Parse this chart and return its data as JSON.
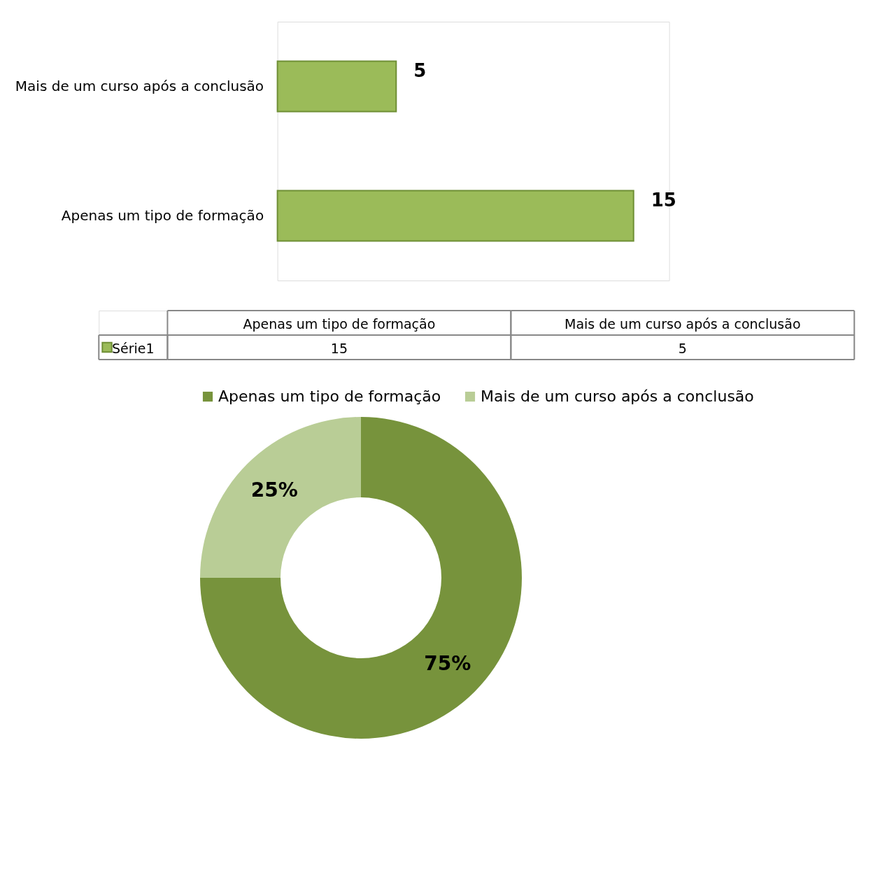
{
  "chart_data": [
    {
      "type": "bar",
      "orientation": "horizontal",
      "categories": [
        "Mais de um curso após a conclusão",
        "Apenas um tipo de formação"
      ],
      "series": [
        {
          "color": "#9bbb59",
          "values": [
            5,
            15
          ]
        }
      ],
      "data_labels": true
    },
    {
      "type": "other",
      "categories": [
        "Apenas um tipo de formação",
        "Mais de um curso após a conclusão"
      ],
      "series": [
        {
          "name": "Série1",
          "color": "#9bbb59",
          "values": [
            15,
            5
          ]
        }
      ],
      "data_labels": true,
      "legend": "left"
    },
    {
      "type": "donut",
      "categories": [
        "Apenas um tipo de formação",
        "Mais de um curso após a conclusão"
      ],
      "values": [
        75,
        25
      ],
      "colors": [
        "#77933c",
        "#b9cd96"
      ],
      "value_labels": [
        "75%",
        "25%"
      ],
      "legend": "top"
    }
  ]
}
